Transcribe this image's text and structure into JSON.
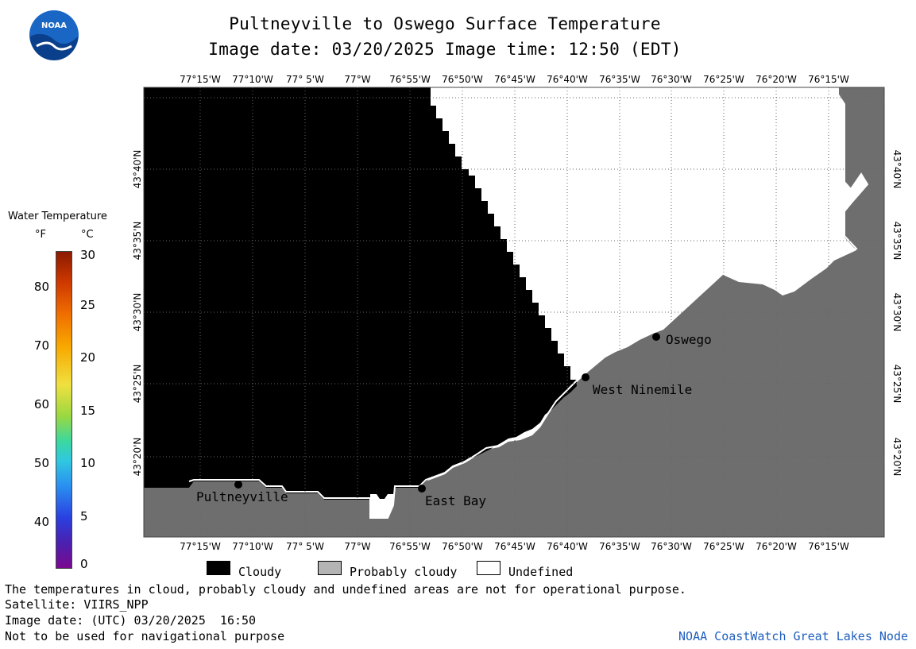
{
  "header": {
    "title": "Pultneyville to Oswego Surface Temperature",
    "image_date_label": "Image date:",
    "image_date": "03/20/2025",
    "image_time_label": "Image time:",
    "image_time": "12:50 (EDT)"
  },
  "logo": {
    "text": "NOAA",
    "icon": "noaa-logo-icon"
  },
  "map": {
    "lon_labels": [
      "77°15'W",
      "77°10'W",
      "77° 5'W",
      "77°W",
      "76°55'W",
      "76°50'W",
      "76°45'W",
      "76°40'W",
      "76°35'W",
      "76°30'W",
      "76°25'W",
      "76°20'W",
      "76°15'W"
    ],
    "lat_labels": [
      "43°20'N",
      "43°25'N",
      "43°30'N",
      "43°35'N",
      "43°40'N"
    ],
    "places": [
      "Pultneyville",
      "East Bay",
      "West Ninemile",
      "Oswego"
    ],
    "colors": {
      "cloudy": "#000000",
      "land": "#6e6e6e",
      "undefined": "#ffffff",
      "grid": "#666666"
    }
  },
  "legend": {
    "title": "Water Temperature",
    "unit_f": "°F",
    "unit_c": "°C",
    "f_ticks": [
      "80",
      "70",
      "60",
      "50",
      "40"
    ],
    "c_ticks": [
      "30",
      "25",
      "20",
      "15",
      "10",
      "5",
      "0"
    ]
  },
  "key": {
    "cloudy": "Cloudy",
    "probably_cloudy": "Probably cloudy",
    "undefined": "Undefined",
    "colors": {
      "cloudy": "#000000",
      "probably_cloudy": "#b4b4b4",
      "undefined": "#ffffff"
    }
  },
  "footer": {
    "line1": "The temperatures in cloud, probably cloudy and undefined areas are not for operational purpose.",
    "line2": "Satellite: VIIRS_NPP",
    "line3": "Image date: (UTC) 03/20/2025  16:50",
    "line4": "Not to be used for navigational purpose",
    "credit": "NOAA CoastWatch Great Lakes Node"
  }
}
